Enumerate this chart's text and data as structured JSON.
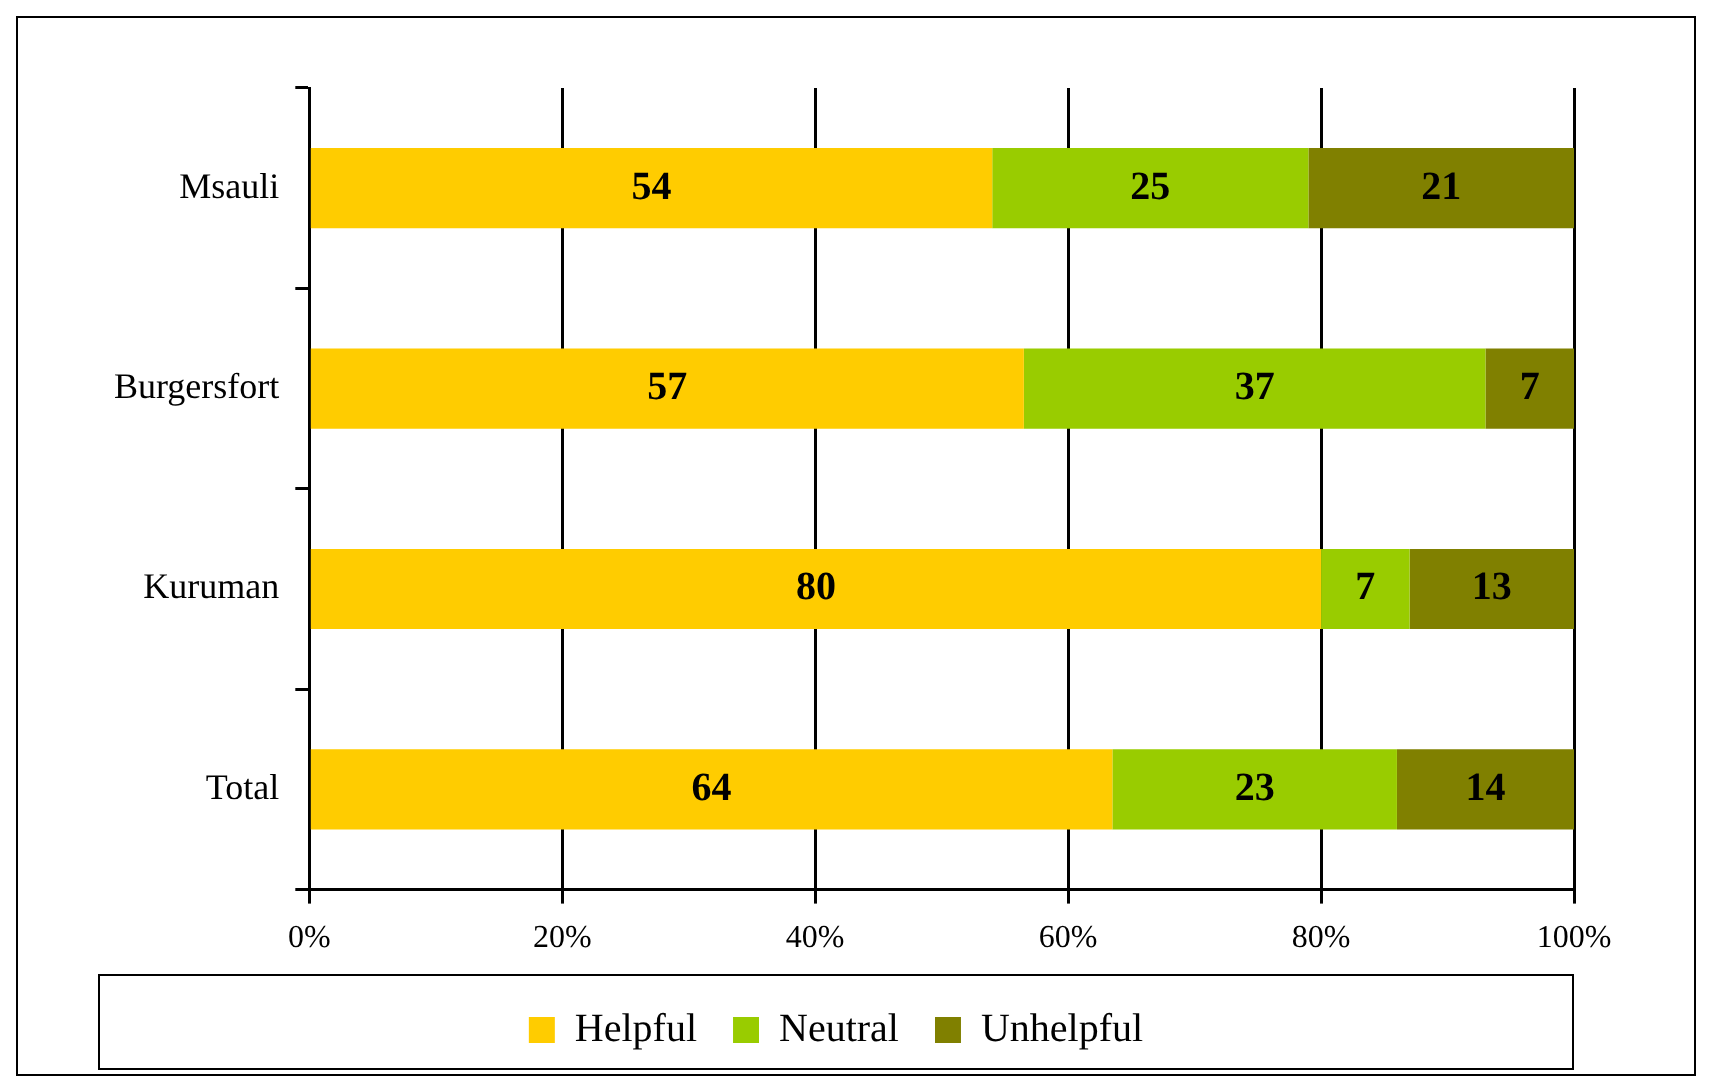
{
  "chart_data": {
    "type": "bar",
    "orientation": "horizontal",
    "stacked": true,
    "categories": [
      "Msauli",
      "Burgersfort",
      "Kuruman",
      "Total"
    ],
    "series": [
      {
        "name": "Helpful",
        "color": "#ffcc00",
        "values": [
          54,
          56.5,
          80,
          63.5
        ],
        "value_labels": [
          "54",
          "57",
          "80",
          "64"
        ]
      },
      {
        "name": "Neutral",
        "color": "#99cc00",
        "values": [
          25,
          36.5,
          7,
          22.5
        ],
        "value_labels": [
          "25",
          "37",
          "7",
          "23"
        ]
      },
      {
        "name": "Unhelpful",
        "color": "#808000",
        "values": [
          21,
          7,
          13,
          14
        ],
        "value_labels": [
          "21",
          "7",
          "13",
          "14"
        ]
      }
    ],
    "xlim": [
      0,
      100
    ],
    "xticks": [
      {
        "value": 0,
        "label": "0%"
      },
      {
        "value": 20,
        "label": "20%"
      },
      {
        "value": 40,
        "label": "40%"
      },
      {
        "value": 60,
        "label": "60%"
      },
      {
        "value": 80,
        "label": "80%"
      },
      {
        "value": 100,
        "label": "100%"
      }
    ],
    "grid": "x",
    "legend": "bottom"
  }
}
